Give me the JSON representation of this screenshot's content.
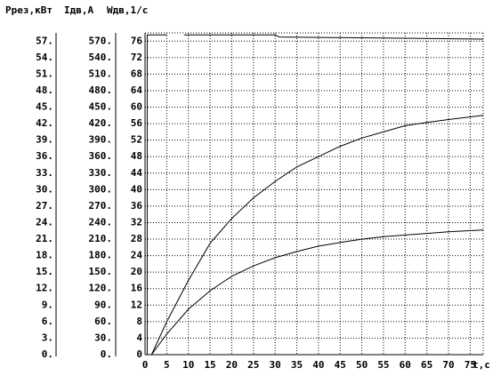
{
  "chart_data": {
    "type": "line",
    "axis_titles": [
      "Ррез,кВт",
      "Iдв,А",
      "Wдв,1/с"
    ],
    "xlabel": "t,c",
    "xlim": [
      0,
      78
    ],
    "xticks": [
      0,
      5,
      10,
      15,
      20,
      25,
      30,
      35,
      40,
      45,
      50,
      55,
      60,
      65,
      70,
      75
    ],
    "ylim": [
      0,
      78
    ],
    "yticks": [
      0,
      4,
      8,
      12,
      16,
      20,
      24,
      28,
      32,
      36,
      40,
      44,
      48,
      52,
      56,
      60,
      64,
      68,
      72,
      76
    ],
    "y2lim": [
      0,
      58.5
    ],
    "y2ticks": [
      {
        "value": 0,
        "label": "0."
      },
      {
        "value": 3,
        "label": "3."
      },
      {
        "value": 6,
        "label": "6."
      },
      {
        "value": 9,
        "label": "9."
      },
      {
        "value": 12,
        "label": "12."
      },
      {
        "value": 15,
        "label": "15."
      },
      {
        "value": 18,
        "label": "18."
      },
      {
        "value": 21,
        "label": "21."
      },
      {
        "value": 24,
        "label": "24."
      },
      {
        "value": 27,
        "label": "27."
      },
      {
        "value": 30,
        "label": "30."
      },
      {
        "value": 33,
        "label": "33."
      },
      {
        "value": 36,
        "label": "36."
      },
      {
        "value": 39,
        "label": "39."
      },
      {
        "value": 42,
        "label": "42."
      },
      {
        "value": 45,
        "label": "45."
      },
      {
        "value": 48,
        "label": "48."
      },
      {
        "value": 51,
        "label": "51."
      },
      {
        "value": 54,
        "label": "54."
      },
      {
        "value": 57,
        "label": "57."
      }
    ],
    "y3lim": [
      0,
      585
    ],
    "y3ticks": [
      {
        "value": 0,
        "label": "0."
      },
      {
        "value": 30,
        "label": "30."
      },
      {
        "value": 60,
        "label": "60."
      },
      {
        "value": 90,
        "label": "90."
      },
      {
        "value": 120,
        "label": "120."
      },
      {
        "value": 150,
        "label": "150."
      },
      {
        "value": 180,
        "label": "180."
      },
      {
        "value": 210,
        "label": "210."
      },
      {
        "value": 240,
        "label": "240."
      },
      {
        "value": 270,
        "label": "270."
      },
      {
        "value": 300,
        "label": "300."
      },
      {
        "value": 330,
        "label": "330."
      },
      {
        "value": 360,
        "label": "360."
      },
      {
        "value": 390,
        "label": "390."
      },
      {
        "value": 420,
        "label": "420."
      },
      {
        "value": 450,
        "label": "450."
      },
      {
        "value": 480,
        "label": "480."
      },
      {
        "value": 510,
        "label": "510."
      },
      {
        "value": 540,
        "label": "540."
      },
      {
        "value": 570,
        "label": "570."
      }
    ],
    "grid": true,
    "series": [
      {
        "color": "#000000",
        "x": [
          0.5,
          0.5,
          5,
          8.5,
          9,
          30,
          31,
          78
        ],
        "values": [
          0,
          77.5,
          77.5,
          null,
          77.5,
          77.5,
          77,
          76.5
        ]
      },
      {
        "color": "#000000",
        "x": [
          1.5,
          5,
          10,
          15,
          20,
          25,
          30,
          35,
          40,
          45,
          50,
          55,
          60,
          65,
          70,
          78
        ],
        "values": [
          0,
          8,
          18,
          27,
          33,
          38,
          42,
          45.5,
          48,
          50.5,
          52.5,
          54,
          55.5,
          56.3,
          57,
          58
        ]
      },
      {
        "color": "#000000",
        "x": [
          1.5,
          5,
          10,
          15,
          20,
          25,
          30,
          35,
          40,
          45,
          50,
          55,
          60,
          65,
          70,
          78
        ],
        "values": [
          0,
          5,
          11,
          15.5,
          19,
          21.5,
          23.5,
          25,
          26.3,
          27.2,
          28,
          28.6,
          29,
          29.4,
          29.8,
          30.2
        ]
      }
    ]
  }
}
